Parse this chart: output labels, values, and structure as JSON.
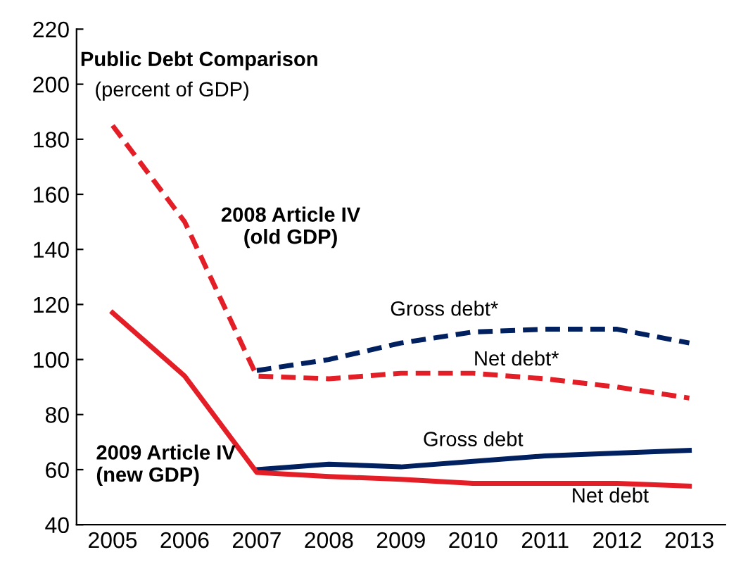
{
  "chart_data": {
    "type": "line",
    "title": "Public Debt Comparison",
    "subtitle": "(percent of GDP)",
    "categories": [
      "2005",
      "2006",
      "2007",
      "2008",
      "2009",
      "2010",
      "2011",
      "2012",
      "2013"
    ],
    "series": [
      {
        "name": "Gross debt*",
        "color": "#002060",
        "line_style": "dashed",
        "values": [
          null,
          null,
          96,
          100,
          106,
          110,
          111,
          111,
          106
        ]
      },
      {
        "name": "Net debt*",
        "color": "#e41e26",
        "line_style": "dashed",
        "values": [
          185,
          150,
          94,
          93,
          95,
          95,
          93,
          90,
          86
        ]
      },
      {
        "name": "Gross debt",
        "color": "#002060",
        "line_style": "solid",
        "values": [
          null,
          null,
          60,
          62,
          61,
          63,
          65,
          66,
          67
        ]
      },
      {
        "name": "Net debt",
        "color": "#e41e26",
        "line_style": "solid",
        "values": [
          117,
          94,
          59,
          57.5,
          56.5,
          55,
          55,
          55,
          54
        ]
      }
    ],
    "annotations": [
      "2008 Article IV\n(old GDP)",
      "2009 Article IV\n(new GDP)"
    ],
    "ylim": [
      40,
      220
    ],
    "yticks": [
      40,
      60,
      80,
      100,
      120,
      140,
      160,
      180,
      200,
      220
    ],
    "grid": false,
    "legend": false,
    "marker": "none"
  }
}
